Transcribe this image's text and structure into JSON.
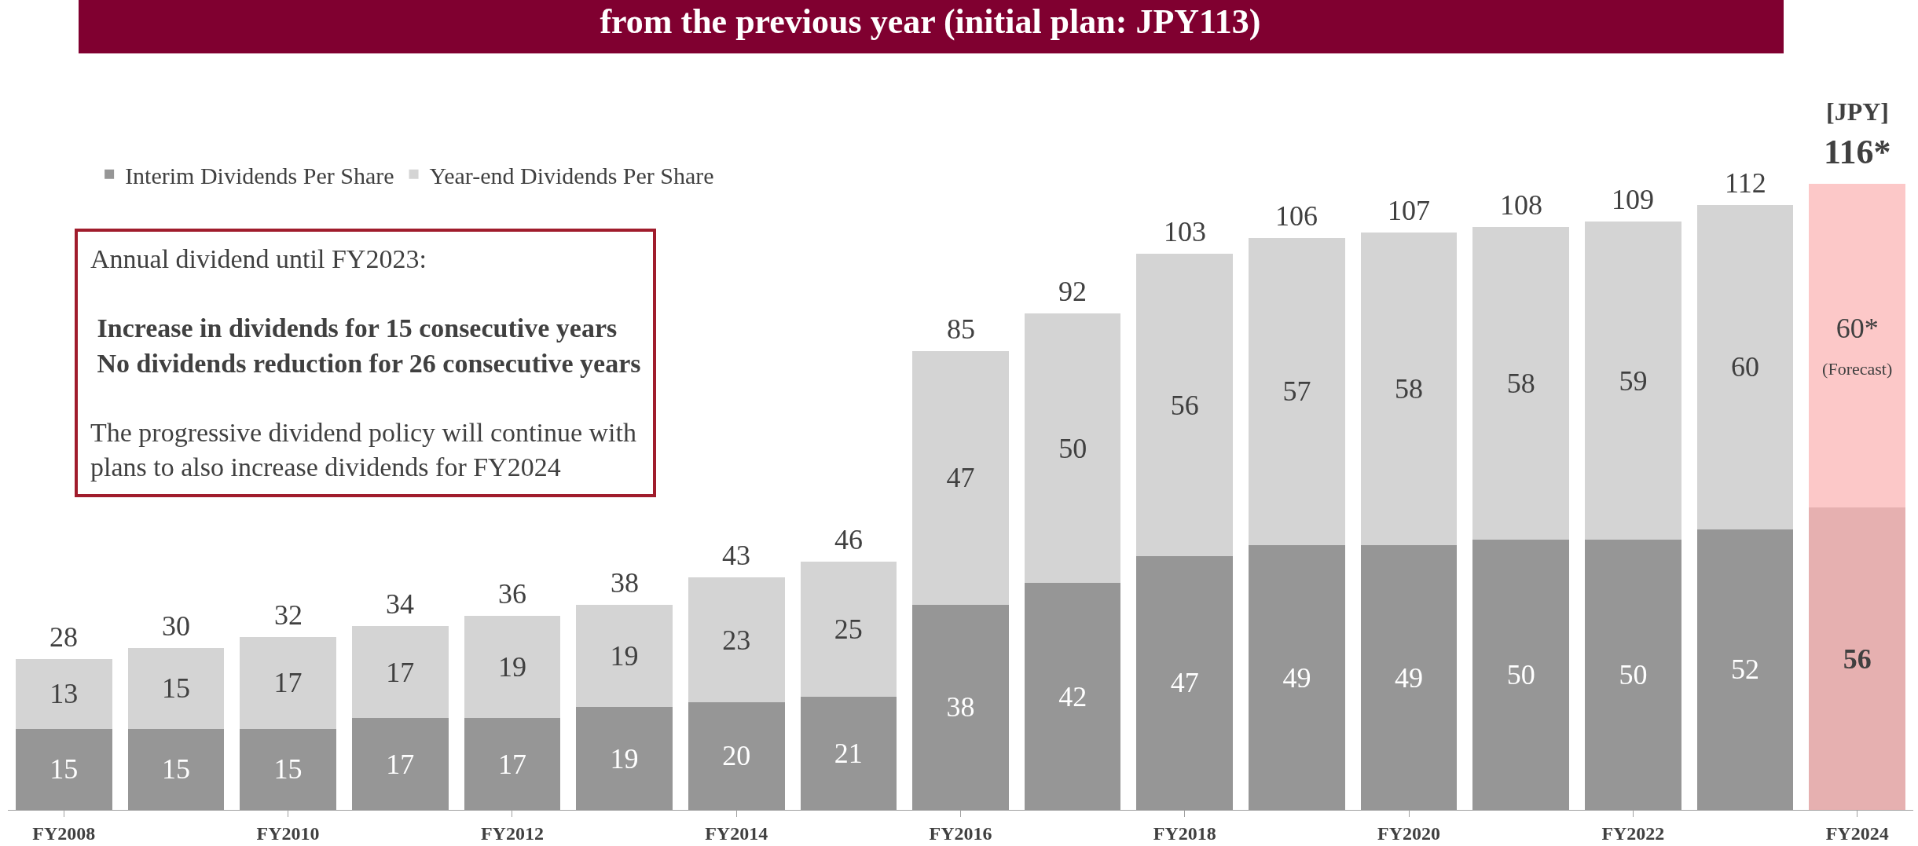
{
  "chart_data": {
    "type": "bar",
    "stacked": true,
    "title": "from the previous year (initial plan: JPY113)",
    "ylabel": "[JPY]",
    "categories": [
      "FY2008",
      null,
      "FY2010",
      null,
      "FY2012",
      null,
      "FY2014",
      null,
      "FY2016",
      null,
      "FY2018",
      null,
      "FY2020",
      null,
      "FY2022",
      null,
      "FY2024"
    ],
    "series": [
      {
        "name": "Interim Dividends Per Share",
        "colors": [
          "#969696",
          "#969696",
          "#969696",
          "#969696",
          "#969696",
          "#969696",
          "#969696",
          "#969696",
          "#969696",
          "#969696",
          "#969696",
          "#969696",
          "#969696",
          "#969696",
          "#969696",
          "#969696",
          "#e6b0b0"
        ],
        "values": [
          15,
          15,
          15,
          17,
          17,
          19,
          20,
          21,
          38,
          42,
          47,
          49,
          49,
          50,
          50,
          52,
          56
        ]
      },
      {
        "name": "Year-end Dividends Per Share",
        "colors": [
          "#d4d4d4",
          "#d4d4d4",
          "#d4d4d4",
          "#d4d4d4",
          "#d4d4d4",
          "#d4d4d4",
          "#d4d4d4",
          "#d4d4d4",
          "#d4d4d4",
          "#d4d4d4",
          "#d4d4d4",
          "#d4d4d4",
          "#d4d4d4",
          "#d4d4d4",
          "#d4d4d4",
          "#d4d4d4",
          "#fcc8c8"
        ],
        "values": [
          13,
          15,
          17,
          17,
          19,
          19,
          23,
          25,
          47,
          50,
          56,
          57,
          58,
          58,
          59,
          60,
          60
        ],
        "value_labels": [
          "13",
          "15",
          "17",
          "17",
          "19",
          "19",
          "23",
          "25",
          "47",
          "50",
          "56",
          "57",
          "58",
          "58",
          "59",
          "60",
          "60* (Forecast)"
        ]
      }
    ],
    "totals": [
      "28",
      "30",
      "32",
      "34",
      "36",
      "38",
      "43",
      "46",
      "85",
      "92",
      "103",
      "106",
      "107",
      "108",
      "109",
      "112",
      "116*"
    ],
    "data_labels": true,
    "legend": "top left",
    "grid": false,
    "annotations": [
      "Annual dividend until FY2023:",
      "Increase in dividends for 15 consecutive years",
      "No dividends reduction for 26 consecutive years",
      "The progressive dividend policy will continue with plans to also increase dividends for FY2024"
    ]
  }
}
